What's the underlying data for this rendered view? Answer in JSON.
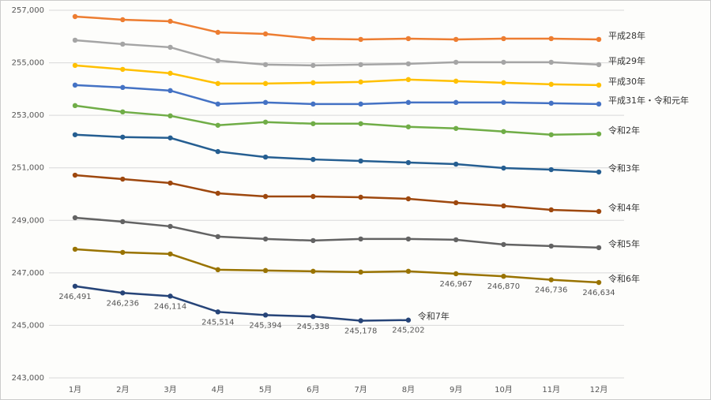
{
  "chart_data": {
    "type": "line",
    "categories": [
      "1月",
      "2月",
      "3月",
      "4月",
      "5月",
      "6月",
      "7月",
      "8月",
      "9月",
      "10月",
      "11月",
      "12月"
    ],
    "ylim": [
      243000,
      257000
    ],
    "yticks": [
      {
        "value": 243000,
        "label": "243,000"
      },
      {
        "value": 245000,
        "label": "245,000"
      },
      {
        "value": 247000,
        "label": "247,000"
      },
      {
        "value": 249000,
        "label": "249,000"
      },
      {
        "value": 251000,
        "label": "251,000"
      },
      {
        "value": 253000,
        "label": "253,000"
      },
      {
        "value": 255000,
        "label": "255,000"
      },
      {
        "value": 257000,
        "label": "257,000"
      }
    ],
    "grid": true,
    "series": [
      {
        "name": "平成28年",
        "color": "#ed7d31",
        "values": [
          256760,
          256640,
          256580,
          256160,
          256100,
          255920,
          255890,
          255920,
          255890,
          255920,
          255920,
          255890
        ]
      },
      {
        "name": "平成29年",
        "color": "#a5a5a5",
        "values": [
          255860,
          255710,
          255590,
          255080,
          254930,
          254900,
          254930,
          254960,
          255020,
          255020,
          255020,
          254930
        ]
      },
      {
        "name": "平成30年",
        "color": "#ffc000",
        "values": [
          254900,
          254750,
          254600,
          254210,
          254210,
          254240,
          254270,
          254360,
          254300,
          254240,
          254180,
          254150
        ]
      },
      {
        "name": "平成31年・令和元年",
        "color": "#4472c4",
        "values": [
          254150,
          254060,
          253940,
          253430,
          253490,
          253430,
          253430,
          253490,
          253490,
          253490,
          253460,
          253430
        ]
      },
      {
        "name": "令和2年",
        "color": "#70ad47",
        "values": [
          253370,
          253130,
          252980,
          252620,
          252740,
          252680,
          252680,
          252560,
          252500,
          252380,
          252260,
          252290
        ]
      },
      {
        "name": "令和3年",
        "color": "#255e91",
        "values": [
          252260,
          252170,
          252140,
          251620,
          251410,
          251320,
          251260,
          251200,
          251140,
          250990,
          250930,
          250840
        ]
      },
      {
        "name": "令和4年",
        "color": "#9e480e",
        "values": [
          250720,
          250570,
          250420,
          250030,
          249910,
          249910,
          249880,
          249820,
          249670,
          249550,
          249400,
          249340
        ]
      },
      {
        "name": "令和5年",
        "color": "#636363",
        "values": [
          249100,
          248950,
          248770,
          248380,
          248290,
          248230,
          248290,
          248290,
          248260,
          248080,
          248020,
          247960
        ]
      },
      {
        "name": "令和6年",
        "color": "#997300",
        "values": [
          247900,
          247780,
          247720,
          247120,
          247090,
          247060,
          247030,
          247060,
          246967,
          246870,
          246736,
          246634
        ],
        "value_labels": [
          null,
          null,
          null,
          null,
          null,
          null,
          null,
          null,
          "246,967",
          "246,870",
          "246,736",
          "246,634"
        ]
      },
      {
        "name": "令和7年",
        "color": "#264478",
        "values": [
          246491,
          246236,
          246114,
          245514,
          245394,
          245338,
          245178,
          245202,
          null,
          null,
          null,
          null
        ],
        "value_labels": [
          "246,491",
          "246,236",
          "246,114",
          "245,514",
          "245,394",
          "245,338",
          "245,178",
          "245,202",
          null,
          null,
          null,
          null
        ]
      }
    ]
  }
}
